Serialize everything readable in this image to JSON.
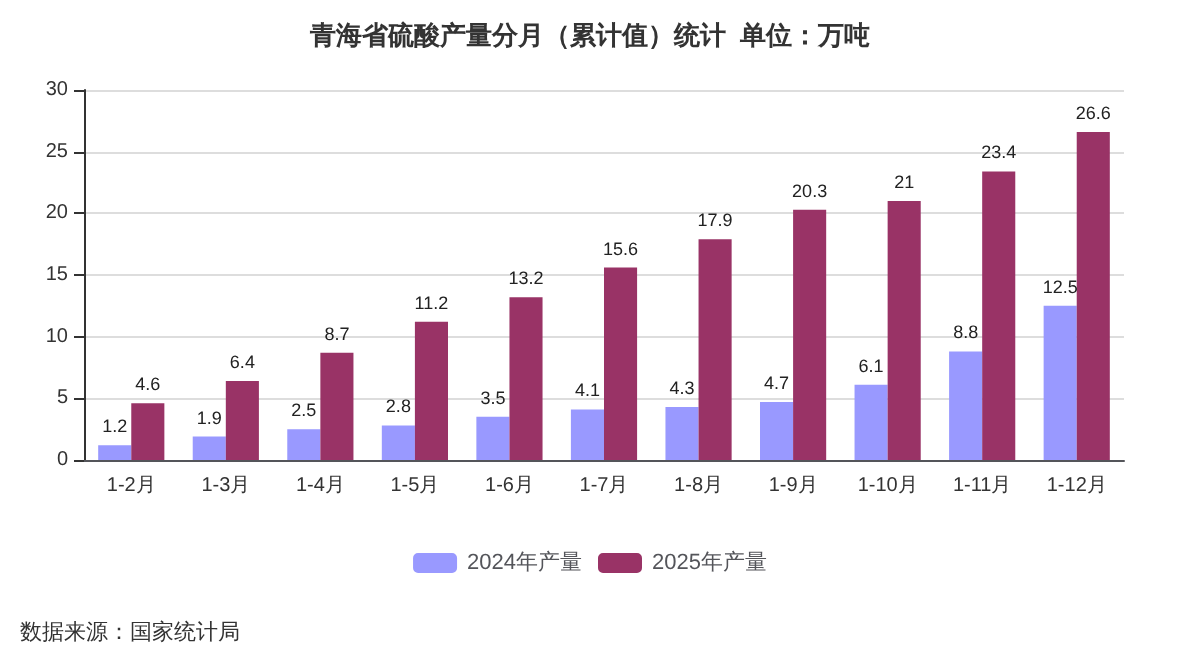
{
  "chart_data": {
    "type": "bar",
    "title": "青海省硫酸产量分月（累计值）统计  单位：万吨",
    "categories": [
      "1-2月",
      "1-3月",
      "1-4月",
      "1-5月",
      "1-6月",
      "1-7月",
      "1-8月",
      "1-9月",
      "1-10月",
      "1-11月",
      "1-12月"
    ],
    "series": [
      {
        "name": "2024年产量",
        "color": "#9999ff",
        "values": [
          1.2,
          1.9,
          2.5,
          2.8,
          3.5,
          4.1,
          4.3,
          4.7,
          6.1,
          8.8,
          12.5
        ]
      },
      {
        "name": "2025年产量",
        "color": "#993366",
        "values": [
          4.6,
          6.4,
          8.7,
          11.2,
          13.2,
          15.6,
          17.9,
          20.3,
          21,
          23.4,
          26.6
        ]
      }
    ],
    "ylim": [
      0,
      30
    ],
    "yticks": [
      0,
      5,
      10,
      15,
      20,
      25,
      30
    ],
    "grid": "y",
    "legend": "bottom",
    "data_labels": true,
    "annotations": [
      "数据来源：国家统计局"
    ]
  }
}
